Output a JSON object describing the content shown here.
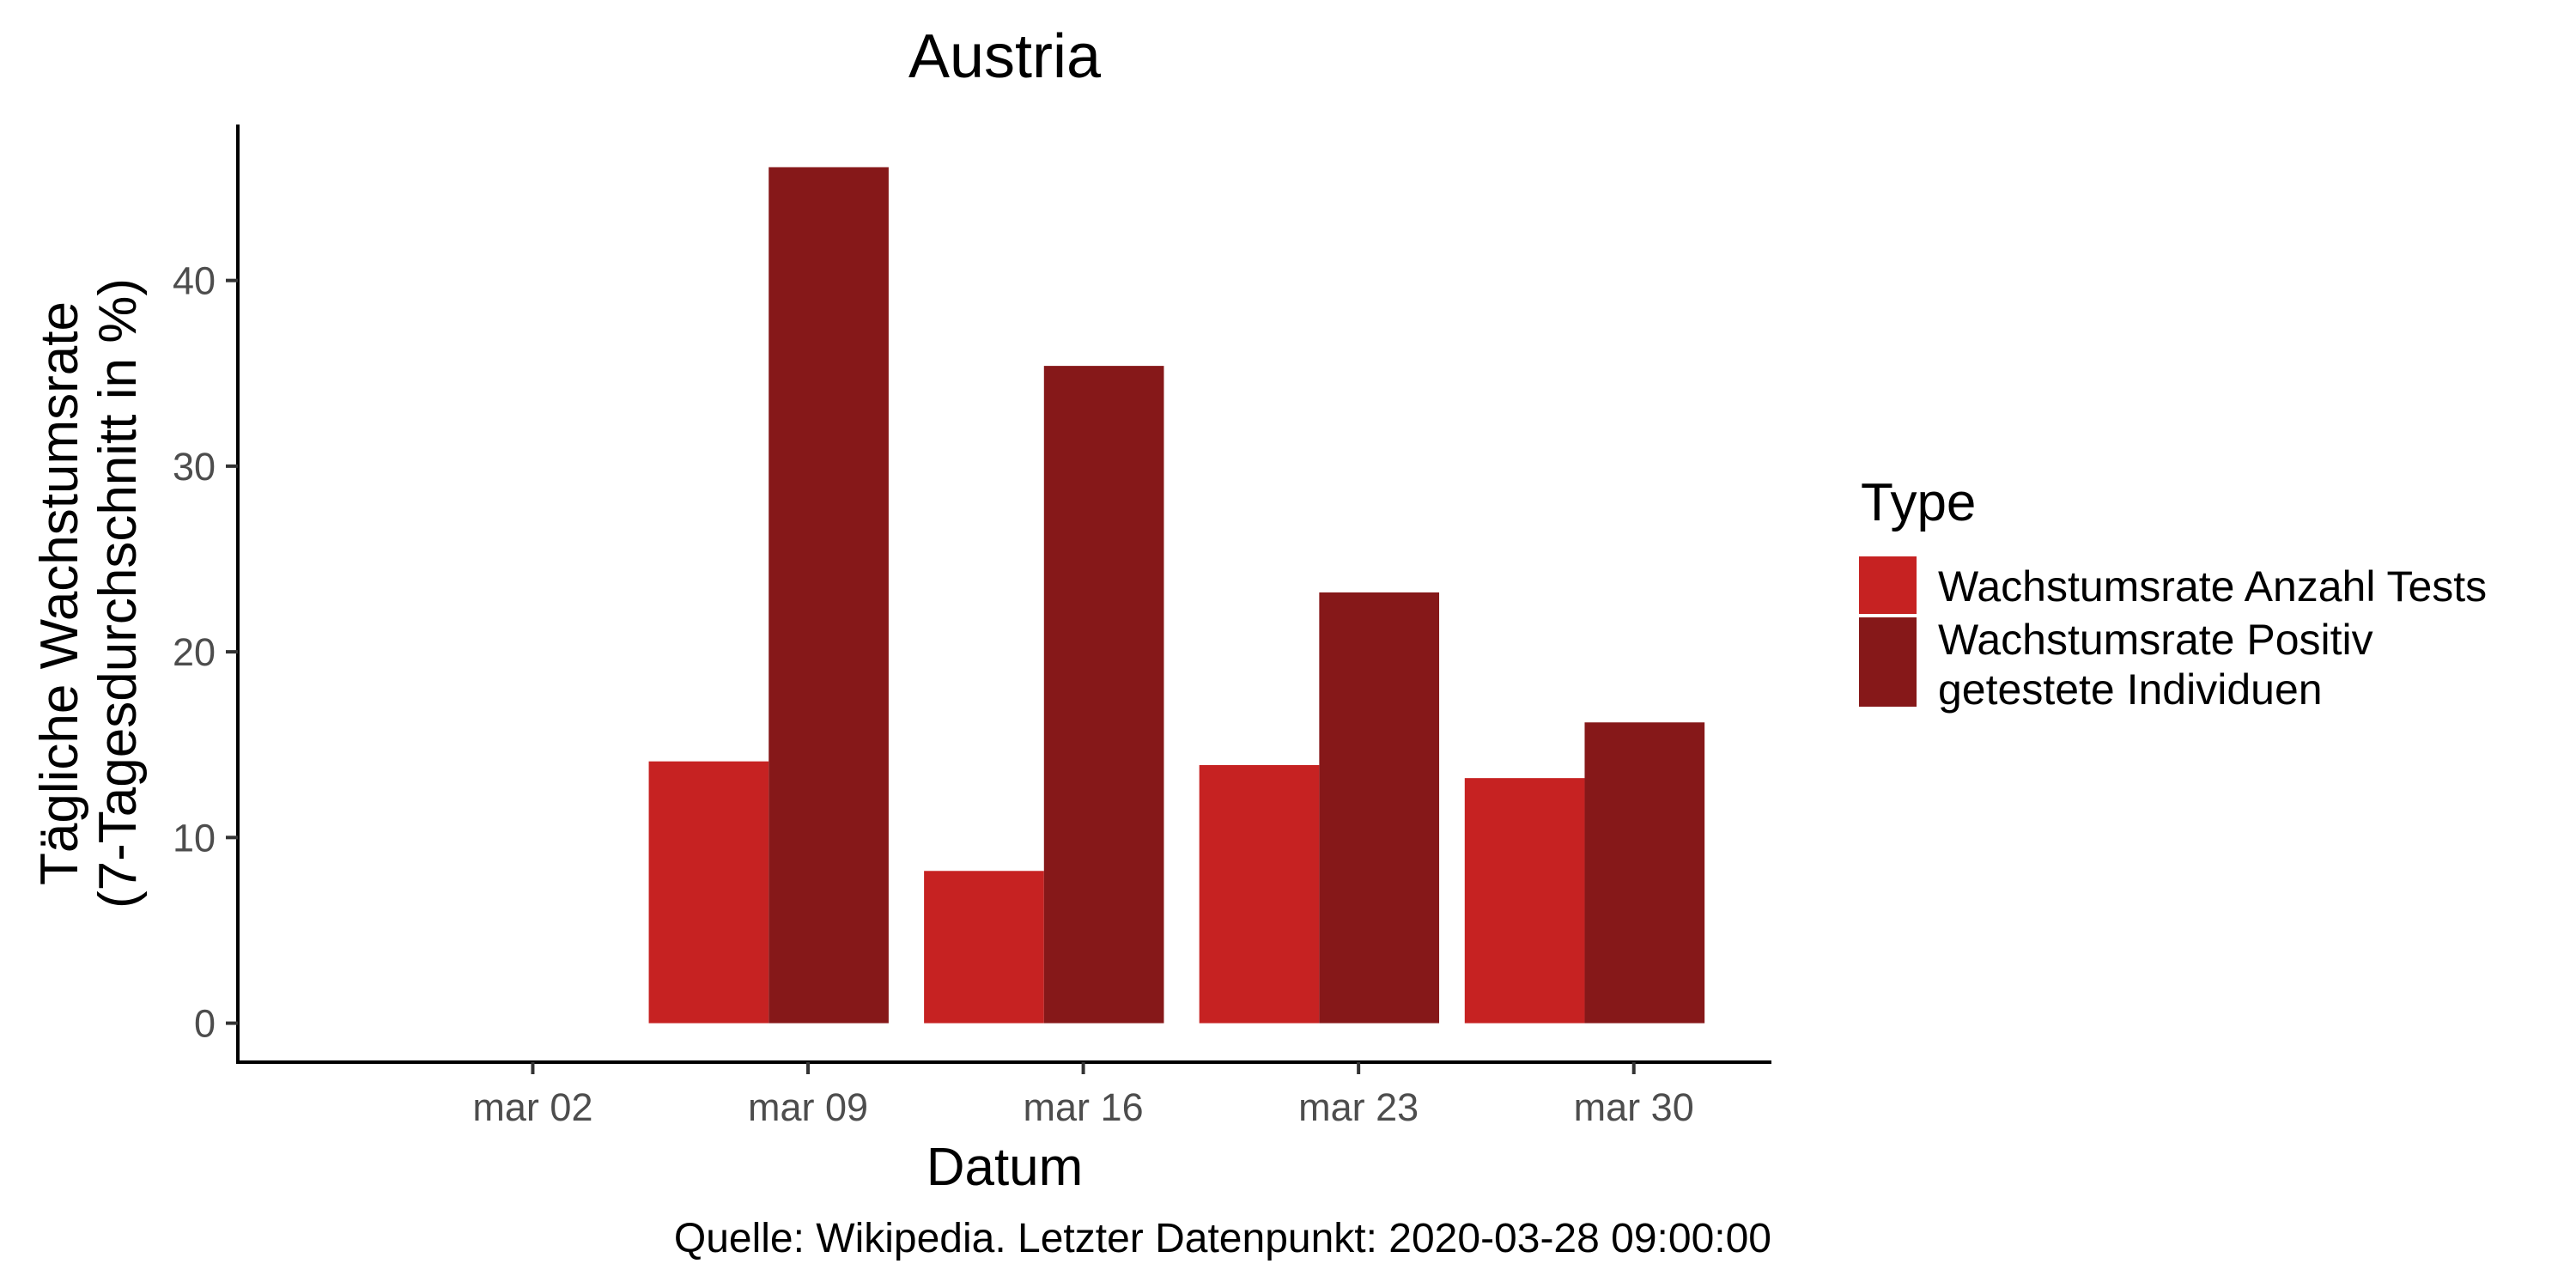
{
  "chart_data": {
    "type": "bar",
    "title": "Austria",
    "xlabel": "Datum",
    "ylabel_lines": [
      "Tägliche Wachstumsrate",
      "(7-Tagesdurchschnitt in %)"
    ],
    "caption": "Quelle: Wikipedia. Letzter Datenpunkt: 2020-03-28 09:00:00",
    "legend": {
      "title": "Type",
      "position": "right"
    },
    "x_ticks": [
      {
        "label": "mar 02",
        "day": 2
      },
      {
        "label": "mar 09",
        "day": 9
      },
      {
        "label": "mar 16",
        "day": 16
      },
      {
        "label": "mar 23",
        "day": 23
      },
      {
        "label": "mar 30",
        "day": 30
      }
    ],
    "xlim_days": [
      -5.5,
      33.5
    ],
    "ylim": [
      -2.1,
      48.4
    ],
    "y_ticks": [
      0,
      10,
      20,
      30,
      40
    ],
    "grid": false,
    "categories": [
      "mar 08",
      "mar 15",
      "mar 22",
      "mar 29"
    ],
    "category_days": [
      8.0,
      15.0,
      22.0,
      28.75
    ],
    "category_widths_days": [
      6.1,
      6.1,
      6.1,
      6.1
    ],
    "series": [
      {
        "name": "Wachstumsrate Anzahl Tests",
        "color": "#c62222",
        "values": [
          14.1,
          8.2,
          13.9,
          13.2
        ]
      },
      {
        "name": "Wachstumsrate Positiv getestete Individuen",
        "legend_lines": [
          "Wachstumsrate Positiv",
          "getestete Individuen"
        ],
        "color": "#861819",
        "values": [
          46.1,
          35.4,
          23.2,
          16.2
        ]
      }
    ]
  }
}
